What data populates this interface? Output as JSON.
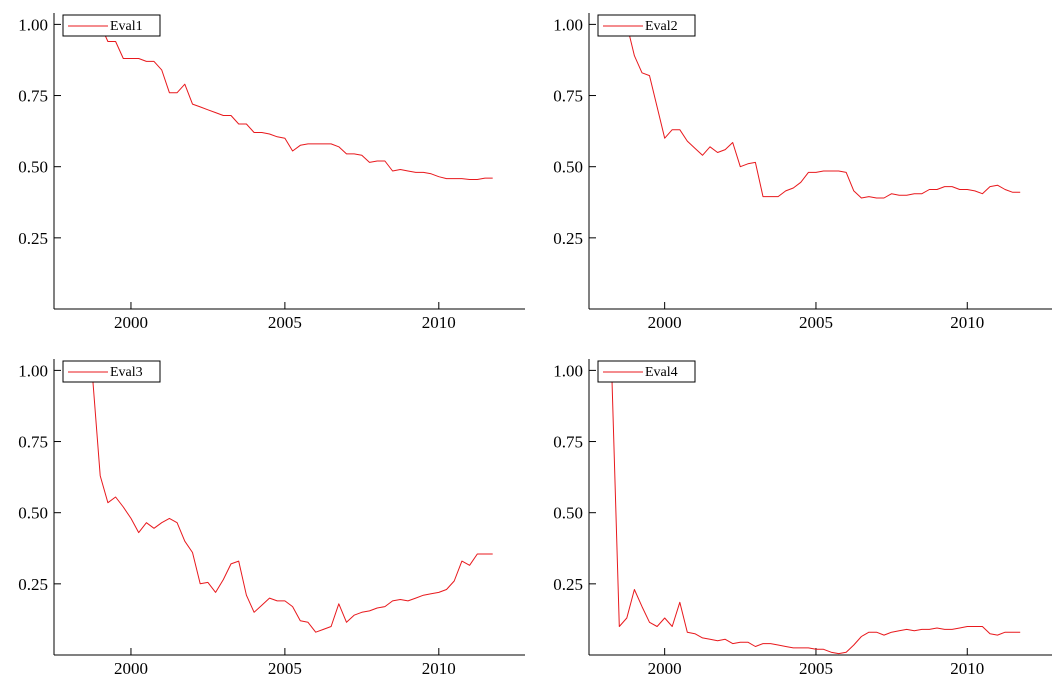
{
  "colors": {
    "series": "#e8191d",
    "axis": "#000000",
    "background": "#ffffff"
  },
  "chart_data": [
    {
      "type": "line",
      "legend": "Eval1",
      "legend_placement": "top-left",
      "grid": false,
      "xlim": [
        1997.5,
        2012.8
      ],
      "ylim": [
        0,
        1.04
      ],
      "xticks": [
        2000,
        2005,
        2010
      ],
      "yticks": [
        0.25,
        0.5,
        0.75,
        1.0
      ],
      "xtick_labels": [
        "2000",
        "2005",
        "2010"
      ],
      "ytick_labels": [
        "0.25",
        "0.50",
        "0.75",
        "1.00"
      ],
      "series": [
        {
          "x": [
            1998.0,
            1998.25,
            1998.5,
            1998.75,
            1999.0,
            1999.25,
            1999.5,
            1999.75,
            2000.0,
            2000.25,
            2000.5,
            2000.75,
            2001.0,
            2001.25,
            2001.5,
            2001.75,
            2002.0,
            2002.25,
            2002.5,
            2002.75,
            2003.0,
            2003.25,
            2003.5,
            2003.75,
            2004.0,
            2004.25,
            2004.5,
            2004.75,
            2005.0,
            2005.25,
            2005.5,
            2005.75,
            2006.0,
            2006.25,
            2006.5,
            2006.75,
            2007.0,
            2007.25,
            2007.5,
            2007.75,
            2008.0,
            2008.25,
            2008.5,
            2008.75,
            2009.0,
            2009.25,
            2009.5,
            2009.75,
            2010.0,
            2010.25,
            2010.5,
            2010.75,
            2011.0,
            2011.25,
            2011.5,
            2011.75
          ],
          "y": [
            1.0,
            1.0,
            1.0,
            1.0,
            1.0,
            0.94,
            0.94,
            0.88,
            0.88,
            0.88,
            0.87,
            0.87,
            0.84,
            0.76,
            0.76,
            0.79,
            0.72,
            0.71,
            0.7,
            0.69,
            0.68,
            0.68,
            0.65,
            0.65,
            0.62,
            0.62,
            0.615,
            0.605,
            0.6,
            0.555,
            0.575,
            0.58,
            0.58,
            0.58,
            0.58,
            0.57,
            0.545,
            0.545,
            0.54,
            0.515,
            0.52,
            0.52,
            0.485,
            0.49,
            0.485,
            0.48,
            0.48,
            0.475,
            0.465,
            0.458,
            0.458,
            0.458,
            0.455,
            0.455,
            0.46,
            0.46
          ]
        }
      ]
    },
    {
      "type": "line",
      "legend": "Eval2",
      "legend_placement": "top-left",
      "grid": false,
      "xlim": [
        1997.5,
        2012.8
      ],
      "ylim": [
        0,
        1.04
      ],
      "xticks": [
        2000,
        2005,
        2010
      ],
      "yticks": [
        0.25,
        0.5,
        0.75,
        1.0
      ],
      "xtick_labels": [
        "2000",
        "2005",
        "2010"
      ],
      "ytick_labels": [
        "0.25",
        "0.50",
        "0.75",
        "1.00"
      ],
      "series": [
        {
          "x": [
            1998.0,
            1998.25,
            1998.5,
            1998.75,
            1999.0,
            1999.25,
            1999.5,
            1999.75,
            2000.0,
            2000.25,
            2000.5,
            2000.75,
            2001.0,
            2001.25,
            2001.5,
            2001.75,
            2002.0,
            2002.25,
            2002.5,
            2002.75,
            2003.0,
            2003.25,
            2003.5,
            2003.75,
            2004.0,
            2004.25,
            2004.5,
            2004.75,
            2005.0,
            2005.25,
            2005.5,
            2005.75,
            2006.0,
            2006.25,
            2006.5,
            2006.75,
            2007.0,
            2007.25,
            2007.5,
            2007.75,
            2008.0,
            2008.25,
            2008.5,
            2008.75,
            2009.0,
            2009.25,
            2009.5,
            2009.75,
            2010.0,
            2010.25,
            2010.5,
            2010.75,
            2011.0,
            2011.25,
            2011.5,
            2011.75
          ],
          "y": [
            1.0,
            1.0,
            1.0,
            1.0,
            0.89,
            0.83,
            0.82,
            0.71,
            0.6,
            0.63,
            0.63,
            0.59,
            0.565,
            0.54,
            0.57,
            0.55,
            0.56,
            0.585,
            0.5,
            0.51,
            0.515,
            0.395,
            0.395,
            0.395,
            0.415,
            0.425,
            0.445,
            0.48,
            0.48,
            0.485,
            0.485,
            0.485,
            0.48,
            0.415,
            0.39,
            0.395,
            0.39,
            0.39,
            0.405,
            0.4,
            0.4,
            0.405,
            0.405,
            0.42,
            0.42,
            0.43,
            0.43,
            0.42,
            0.42,
            0.415,
            0.405,
            0.43,
            0.435,
            0.42,
            0.41,
            0.41
          ]
        }
      ]
    },
    {
      "type": "line",
      "legend": "Eval3",
      "legend_placement": "top-left",
      "grid": false,
      "xlim": [
        1997.5,
        2012.8
      ],
      "ylim": [
        0,
        1.04
      ],
      "xticks": [
        2000,
        2005,
        2010
      ],
      "yticks": [
        0.25,
        0.5,
        0.75,
        1.0
      ],
      "xtick_labels": [
        "2000",
        "2005",
        "2010"
      ],
      "ytick_labels": [
        "0.25",
        "0.50",
        "0.75",
        "1.00"
      ],
      "series": [
        {
          "x": [
            1998.0,
            1998.25,
            1998.5,
            1998.75,
            1999.0,
            1999.25,
            1999.5,
            1999.75,
            2000.0,
            2000.25,
            2000.5,
            2000.75,
            2001.0,
            2001.25,
            2001.5,
            2001.75,
            2002.0,
            2002.25,
            2002.5,
            2002.75,
            2003.0,
            2003.25,
            2003.5,
            2003.75,
            2004.0,
            2004.25,
            2004.5,
            2004.75,
            2005.0,
            2005.25,
            2005.5,
            2005.75,
            2006.0,
            2006.25,
            2006.5,
            2006.75,
            2007.0,
            2007.25,
            2007.5,
            2007.75,
            2008.0,
            2008.25,
            2008.5,
            2008.75,
            2009.0,
            2009.25,
            2009.5,
            2009.75,
            2010.0,
            2010.25,
            2010.5,
            2010.75,
            2011.0,
            2011.25,
            2011.5,
            2011.75
          ],
          "y": [
            1.0,
            1.0,
            1.0,
            0.98,
            0.63,
            0.535,
            0.555,
            0.52,
            0.48,
            0.43,
            0.465,
            0.445,
            0.465,
            0.48,
            0.465,
            0.4,
            0.36,
            0.25,
            0.255,
            0.22,
            0.265,
            0.32,
            0.33,
            0.21,
            0.15,
            0.175,
            0.2,
            0.19,
            0.19,
            0.17,
            0.12,
            0.115,
            0.08,
            0.09,
            0.1,
            0.18,
            0.115,
            0.14,
            0.15,
            0.155,
            0.165,
            0.17,
            0.19,
            0.195,
            0.19,
            0.2,
            0.21,
            0.215,
            0.22,
            0.23,
            0.26,
            0.33,
            0.315,
            0.355,
            0.355,
            0.355
          ]
        }
      ]
    },
    {
      "type": "line",
      "legend": "Eval4",
      "legend_placement": "top-left",
      "grid": false,
      "xlim": [
        1997.5,
        2012.8
      ],
      "ylim": [
        0,
        1.04
      ],
      "xticks": [
        2000,
        2005,
        2010
      ],
      "yticks": [
        0.25,
        0.5,
        0.75,
        1.0
      ],
      "xtick_labels": [
        "2000",
        "2005",
        "2010"
      ],
      "ytick_labels": [
        "0.25",
        "0.50",
        "0.75",
        "1.00"
      ],
      "series": [
        {
          "x": [
            1998.0,
            1998.25,
            1998.5,
            1998.75,
            1999.0,
            1999.25,
            1999.5,
            1999.75,
            2000.0,
            2000.25,
            2000.5,
            2000.75,
            2001.0,
            2001.25,
            2001.5,
            2001.75,
            2002.0,
            2002.25,
            2002.5,
            2002.75,
            2003.0,
            2003.25,
            2003.5,
            2003.75,
            2004.0,
            2004.25,
            2004.5,
            2004.75,
            2005.0,
            2005.25,
            2005.5,
            2005.75,
            2006.0,
            2006.25,
            2006.5,
            2006.75,
            2007.0,
            2007.25,
            2007.5,
            2007.75,
            2008.0,
            2008.25,
            2008.5,
            2008.75,
            2009.0,
            2009.25,
            2009.5,
            2009.75,
            2010.0,
            2010.25,
            2010.5,
            2010.75,
            2011.0,
            2011.25,
            2011.5,
            2011.75
          ],
          "y": [
            1.0,
            1.0,
            0.1,
            0.13,
            0.23,
            0.17,
            0.115,
            0.1,
            0.13,
            0.1,
            0.185,
            0.08,
            0.075,
            0.06,
            0.055,
            0.05,
            0.055,
            0.04,
            0.045,
            0.045,
            0.03,
            0.04,
            0.04,
            0.035,
            0.03,
            0.025,
            0.025,
            0.025,
            0.02,
            0.02,
            0.01,
            0.005,
            0.01,
            0.035,
            0.065,
            0.08,
            0.08,
            0.07,
            0.08,
            0.085,
            0.09,
            0.085,
            0.09,
            0.09,
            0.095,
            0.09,
            0.09,
            0.095,
            0.1,
            0.1,
            0.1,
            0.075,
            0.07,
            0.08,
            0.08,
            0.08
          ]
        }
      ]
    }
  ]
}
